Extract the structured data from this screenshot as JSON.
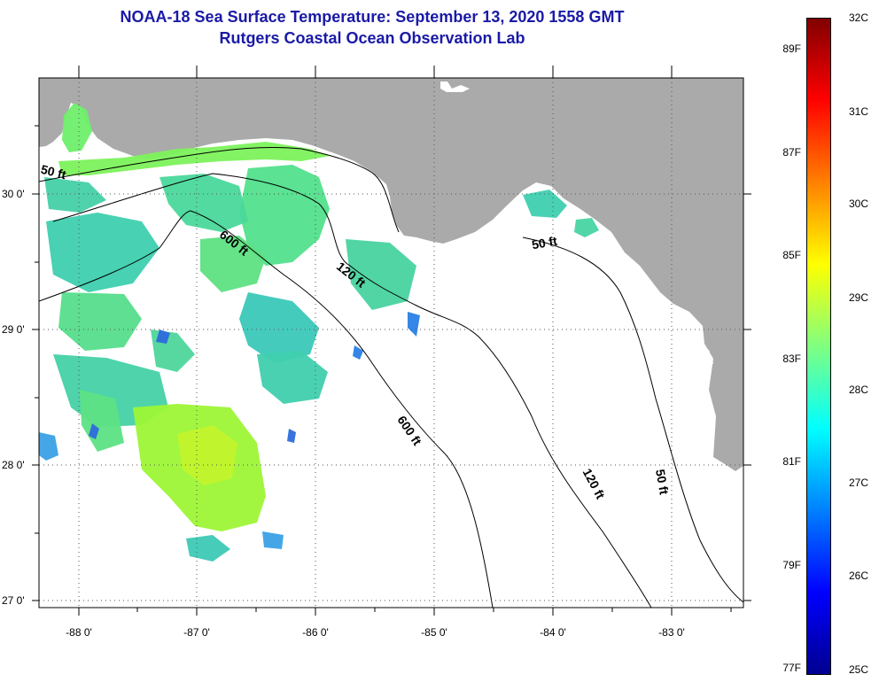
{
  "header": {
    "title": "NOAA-18 Sea Surface Temperature:  September 13, 2020 1558 GMT",
    "subtitle": "Rutgers Coastal Ocean Observation Lab"
  },
  "map": {
    "lat_labels": [
      "30 0'",
      "29 0'",
      "28 0'",
      "27 0'"
    ],
    "lon_labels": [
      "-88 0'",
      "-87 0'",
      "-86 0'",
      "-85 0'",
      "-84 0'",
      "-83 0'"
    ],
    "contour_labels": [
      "50 ft",
      "600 ft",
      "120 ft",
      "50 ft",
      "600 ft",
      "120 ft",
      "50 ft"
    ],
    "colors": {
      "land": "#aaaaaa",
      "ocean_nodata": "#ffffff",
      "grid": "#555555",
      "title": "#1a1aa6"
    }
  },
  "colorbar": {
    "fahrenheit_labels": [
      "89F",
      "87F",
      "85F",
      "83F",
      "81F",
      "79F",
      "77F"
    ],
    "celsius_labels": [
      "32C",
      "31C",
      "30C",
      "29C",
      "28C",
      "27C",
      "26C",
      "25C"
    ],
    "colormap": "jet",
    "range_c": [
      25,
      32
    ]
  }
}
